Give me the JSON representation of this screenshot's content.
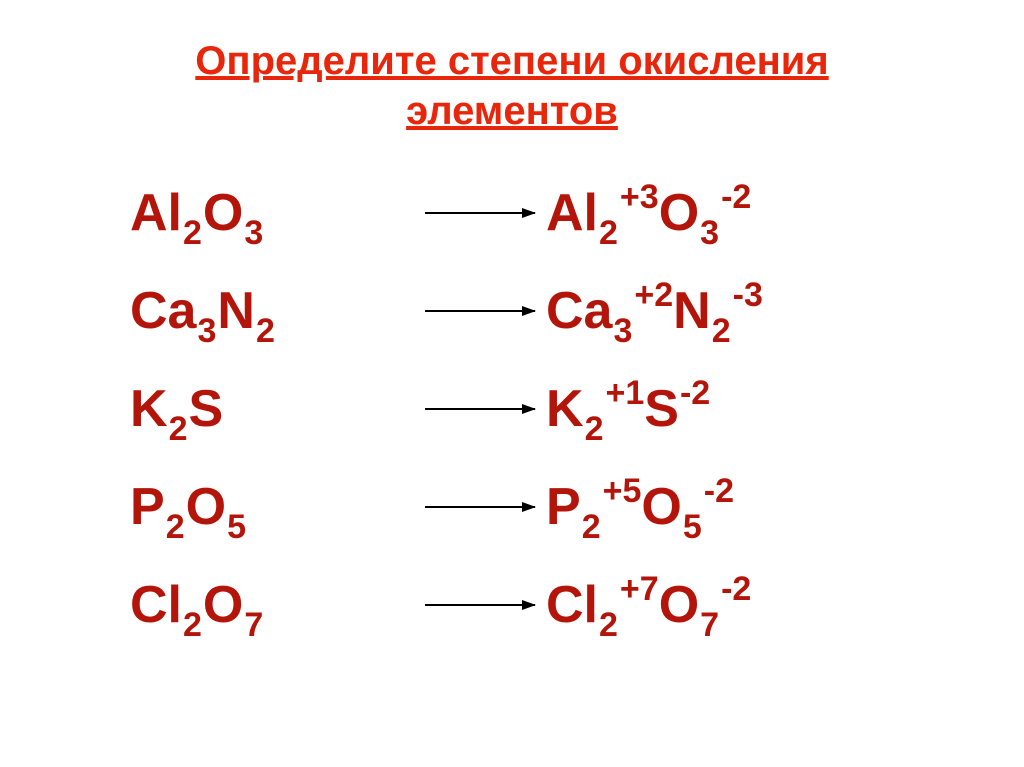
{
  "colors": {
    "title": "#e8260b",
    "formula_left": "#b3150a",
    "formula_right": "#b3150a",
    "arrow": "#000000",
    "background": "#ffffff"
  },
  "typography": {
    "title_fontsize": 40,
    "formula_fontsize": 52,
    "subscript_fontsize": 34,
    "superscript_fontsize": 34,
    "font_family": "Arial",
    "font_weight": "bold"
  },
  "title_line1": "Определите степени окисления",
  "title_line2": "элементов",
  "rows": [
    {
      "left": [
        {
          "sym": "Al",
          "sub": "2"
        },
        {
          "sym": "O",
          "sub": "3"
        }
      ],
      "right": [
        {
          "sym": "Al",
          "sub": "2",
          "sup": "+3"
        },
        {
          "sym": "O",
          "sub": "3",
          "sup": "-2"
        }
      ]
    },
    {
      "left": [
        {
          "sym": "Ca",
          "sub": "3"
        },
        {
          "sym": "N",
          "sub": "2"
        }
      ],
      "right": [
        {
          "sym": "Ca",
          "sub": "3",
          "sup": "+2"
        },
        {
          "sym": "N",
          "sub": "2",
          "sup": "-3"
        }
      ]
    },
    {
      "left": [
        {
          "sym": "K",
          "sub": "2"
        },
        {
          "sym": "S"
        }
      ],
      "right": [
        {
          "sym": "K",
          "sub": "2",
          "sup": "+1"
        },
        {
          "sym": "S",
          "sup": "-2"
        }
      ]
    },
    {
      "left": [
        {
          "sym": "P",
          "sub": "2"
        },
        {
          "sym": "O",
          "sub": "5"
        }
      ],
      "right": [
        {
          "sym": "P",
          "sub": "2",
          "sup": "+5"
        },
        {
          "sym": "O",
          "sub": "5",
          "sup": "-2"
        }
      ]
    },
    {
      "left": [
        {
          "sym": "Cl",
          "sub": "2"
        },
        {
          "sym": "O",
          "sub": "7"
        }
      ],
      "right": [
        {
          "sym": "Cl",
          "sub": "2",
          "sup": "+7"
        },
        {
          "sym": "O",
          "sub": "7",
          "sup": "-2"
        }
      ]
    }
  ]
}
